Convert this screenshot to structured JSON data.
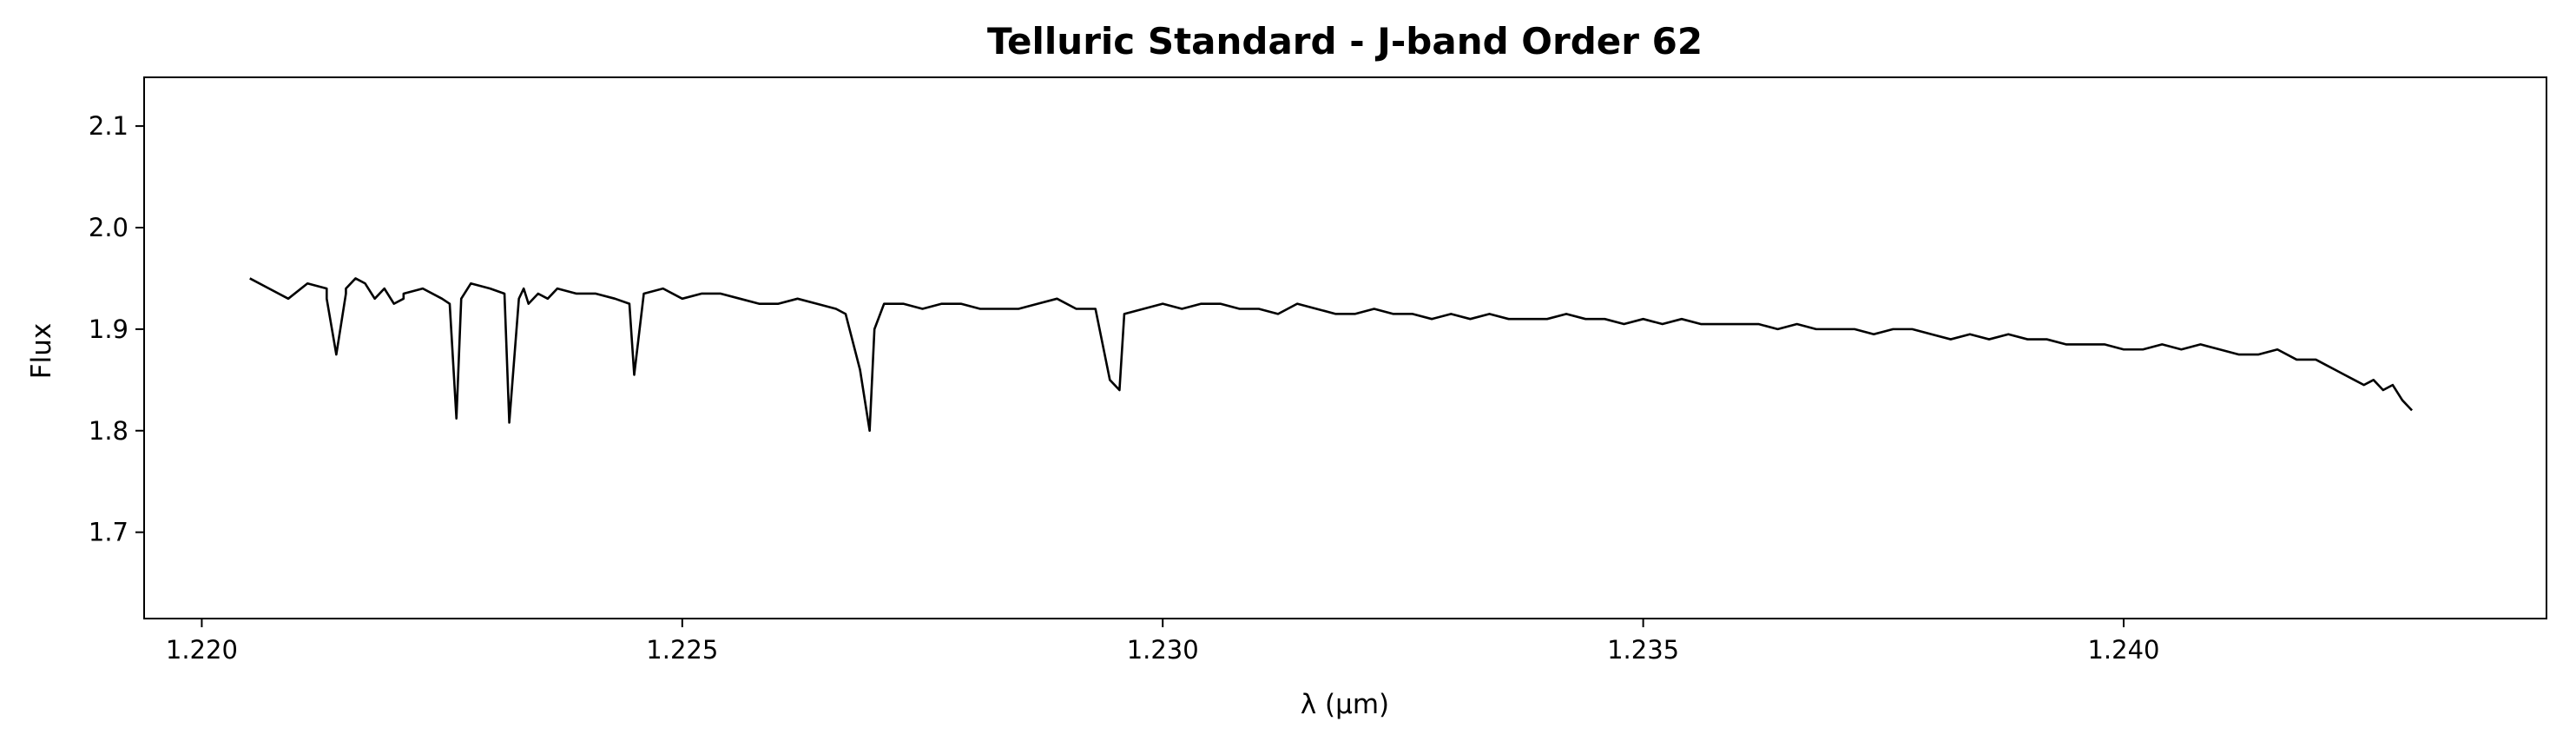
{
  "chart_data": {
    "type": "line",
    "title": "Telluric Standard - J-band Order 62",
    "xlabel": "λ (μm)",
    "ylabel": "Flux",
    "xlim": [
      1.2194,
      1.2444
    ],
    "ylim": [
      1.615,
      2.148
    ],
    "xticks": [
      "1.220",
      "1.225",
      "1.230",
      "1.235",
      "1.240"
    ],
    "xtick_values": [
      1.22,
      1.225,
      1.23,
      1.235,
      1.24
    ],
    "yticks": [
      "1.7",
      "1.8",
      "1.9",
      "2.0",
      "2.1"
    ],
    "ytick_values": [
      1.7,
      1.8,
      1.9,
      2.0,
      2.1
    ],
    "grid": false,
    "line_color": "#000000",
    "series": [
      {
        "x": [
          1.2205,
          1.2207,
          1.2209,
          1.2211,
          1.2213,
          1.2215,
          1.2217,
          1.2219,
          1.2221,
          1.2213,
          1.2214,
          1.2215,
          1.2216,
          1.2217,
          1.2218,
          1.2219,
          1.222,
          1.2221,
          1.2223,
          1.2225,
          1.22258,
          1.22265,
          1.2227,
          1.2228,
          1.223,
          1.22315,
          1.2232,
          1.2233,
          1.22335,
          1.2234,
          1.2235,
          1.2236,
          1.2237,
          1.2239,
          1.2241,
          1.2243,
          1.22445,
          1.2245,
          1.2246,
          1.2248,
          1.225,
          1.2252,
          1.2254,
          1.2256,
          1.2258,
          1.226,
          1.2262,
          1.2264,
          1.2266,
          1.2267,
          1.22685,
          1.22695,
          1.227,
          1.2271,
          1.2273,
          1.2275,
          1.2277,
          1.2279,
          1.2281,
          1.2283,
          1.2285,
          1.2287,
          1.2289,
          1.2291,
          1.2293,
          1.22945,
          1.22955,
          1.2296,
          1.2298,
          1.23,
          1.2302,
          1.2304,
          1.2306,
          1.2308,
          1.231,
          1.2312,
          1.2314,
          1.2316,
          1.2318,
          1.232,
          1.2322,
          1.2324,
          1.2326,
          1.2328,
          1.233,
          1.2332,
          1.2334,
          1.2336,
          1.2338,
          1.234,
          1.2342,
          1.2344,
          1.2346,
          1.2348,
          1.235,
          1.2352,
          1.2354,
          1.2356,
          1.2358,
          1.236,
          1.2362,
          1.2364,
          1.2366,
          1.2368,
          1.237,
          1.2372,
          1.2374,
          1.2376,
          1.2378,
          1.238,
          1.2382,
          1.2384,
          1.2386,
          1.2388,
          1.239,
          1.2392,
          1.2394,
          1.2396,
          1.2398,
          1.24,
          1.2402,
          1.2404,
          1.2406,
          1.2408,
          1.241,
          1.2412,
          1.2414,
          1.2416,
          1.2418,
          1.242,
          1.2421,
          1.2422,
          1.2423,
          1.2424,
          1.2425,
          1.2426,
          1.2427,
          1.2428,
          1.2429,
          1.243
        ],
        "y": [
          1.95,
          1.94,
          1.93,
          1.945,
          1.94,
          1.935,
          1.945,
          1.94,
          1.93,
          1.93,
          1.875,
          1.94,
          1.95,
          1.945,
          1.93,
          1.94,
          1.925,
          1.935,
          1.94,
          1.93,
          1.925,
          1.812,
          1.93,
          1.945,
          1.94,
          1.935,
          1.808,
          1.93,
          1.94,
          1.925,
          1.935,
          1.93,
          1.94,
          1.935,
          1.935,
          1.93,
          1.925,
          1.855,
          1.935,
          1.94,
          1.93,
          1.935,
          1.935,
          1.93,
          1.925,
          1.925,
          1.93,
          1.925,
          1.92,
          1.915,
          1.86,
          1.8,
          1.9,
          1.925,
          1.925,
          1.92,
          1.925,
          1.925,
          1.92,
          1.92,
          1.92,
          1.925,
          1.93,
          1.92,
          1.92,
          1.85,
          1.84,
          1.915,
          1.92,
          1.925,
          1.92,
          1.925,
          1.925,
          1.92,
          1.92,
          1.915,
          1.925,
          1.92,
          1.915,
          1.915,
          1.92,
          1.915,
          1.915,
          1.91,
          1.915,
          1.91,
          1.915,
          1.91,
          1.91,
          1.91,
          1.915,
          1.91,
          1.91,
          1.905,
          1.91,
          1.905,
          1.91,
          1.905,
          1.905,
          1.905,
          1.905,
          1.9,
          1.905,
          1.9,
          1.9,
          1.9,
          1.895,
          1.9,
          1.9,
          1.895,
          1.89,
          1.895,
          1.89,
          1.895,
          1.89,
          1.89,
          1.885,
          1.885,
          1.885,
          1.88,
          1.88,
          1.885,
          1.88,
          1.885,
          1.88,
          1.875,
          1.875,
          1.88,
          1.87,
          1.87,
          1.865,
          1.86,
          1.855,
          1.85,
          1.845,
          1.85,
          1.84,
          1.845,
          1.83,
          1.82
        ]
      }
    ]
  }
}
